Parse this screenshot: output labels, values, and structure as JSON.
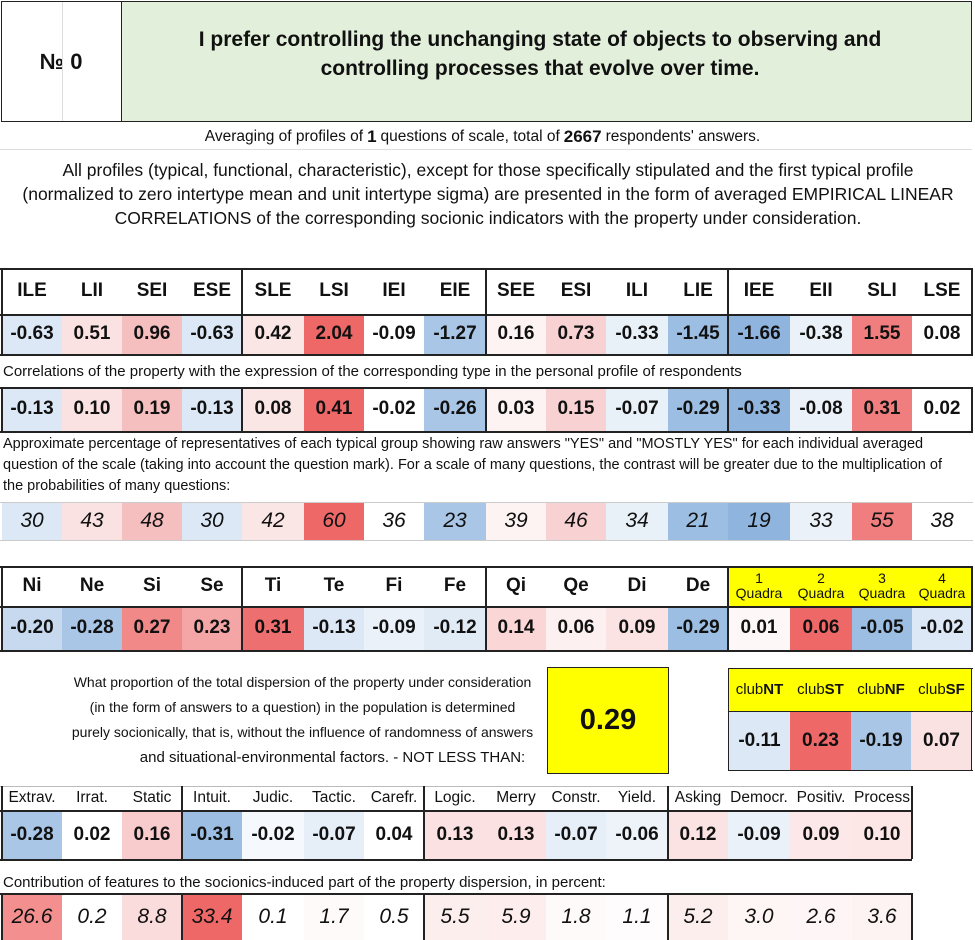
{
  "header": {
    "number_label": "№ 0",
    "question": "I prefer controlling the unchanging state of objects to observing and controlling processes that evolve over time."
  },
  "summary": {
    "prefix": "Averaging of profiles of ",
    "questions": "1",
    "middle": " questions of scale, total of ",
    "respondents": "2667",
    "suffix": " respondents' answers."
  },
  "description": "All profiles (typical, functional, characteristic), except for those specifically stipulated and the first typical profile (normalized to zero intertype mean and unit intertype sigma) are presented in the form of averaged EMPIRICAL LINEAR CORRELATIONS of the corresponding socionic indicators with the property under consideration.",
  "types": {
    "labels": [
      "ILE",
      "LII",
      "SEI",
      "ESE",
      "SLE",
      "LSI",
      "IEI",
      "EIE",
      "SEE",
      "ESI",
      "ILI",
      "LIE",
      "IEE",
      "EII",
      "SLI",
      "LSE"
    ],
    "normalized": [
      "-0.63",
      "0.51",
      "0.96",
      "-0.63",
      "0.42",
      "2.04",
      "-0.09",
      "-1.27",
      "0.16",
      "0.73",
      "-0.33",
      "-1.45",
      "-1.66",
      "-0.38",
      "1.55",
      "0.08"
    ],
    "normalized_colors": [
      "#dce8f5",
      "#fbe2e2",
      "#f6bfbf",
      "#dce8f5",
      "#fbe6e6",
      "#ee6868",
      "#ffffff",
      "#a9c6e6",
      "#fdf3f3",
      "#f8d2d2",
      "#e8f0f8",
      "#9cbee3",
      "#8fb5df",
      "#eaf1f9",
      "#f07e7e",
      "#ffffff"
    ],
    "correlation_caption": "Correlations of the property with the expression of the corresponding type in the personal profile of respondents",
    "correlations": [
      "-0.13",
      "0.10",
      "0.19",
      "-0.13",
      "0.08",
      "0.41",
      "-0.02",
      "-0.26",
      "0.03",
      "0.15",
      "-0.07",
      "-0.29",
      "-0.33",
      "-0.08",
      "0.31",
      "0.02"
    ],
    "correlation_colors": [
      "#dce8f5",
      "#fbe2e2",
      "#f6bfbf",
      "#dce8f5",
      "#fbe6e6",
      "#ee6868",
      "#ffffff",
      "#a9c6e6",
      "#fdf3f3",
      "#f8d2d2",
      "#e8f0f8",
      "#9cbee3",
      "#8fb5df",
      "#eaf1f9",
      "#f07e7e",
      "#ffffff"
    ],
    "percent_caption": "Approximate percentage of representatives of each typical group showing raw answers \"YES\" and \"MOSTLY YES\" for each individual averaged question of the scale (taking into account the question mark). For a scale of many questions, the contrast will be greater due to the multiplication of the probabilities of many questions:",
    "percents": [
      "30",
      "43",
      "48",
      "30",
      "42",
      "60",
      "36",
      "23",
      "39",
      "46",
      "34",
      "21",
      "19",
      "33",
      "55",
      "38"
    ],
    "percent_colors": [
      "#dce8f5",
      "#fbe2e2",
      "#f6bfbf",
      "#dce8f5",
      "#fbe6e6",
      "#ee6868",
      "#ffffff",
      "#a9c6e6",
      "#fdf3f3",
      "#f8d2d2",
      "#e8f0f8",
      "#9cbee3",
      "#8fb5df",
      "#eaf1f9",
      "#f07e7e",
      "#ffffff"
    ]
  },
  "functions": {
    "labels": [
      "Ni",
      "Ne",
      "Si",
      "Se",
      "Ti",
      "Te",
      "Fi",
      "Fe",
      "Qi",
      "Qe",
      "Di",
      "De"
    ],
    "values": [
      "-0.20",
      "-0.28",
      "0.27",
      "0.23",
      "0.31",
      "-0.13",
      "-0.09",
      "-0.12",
      "0.14",
      "0.06",
      "0.09",
      "-0.29"
    ],
    "colors": [
      "#c6d9ee",
      "#a9c6e6",
      "#f28989",
      "#f4a5a5",
      "#ee6f6f",
      "#dce8f5",
      "#eaf1f9",
      "#e0ebf6",
      "#fad6d6",
      "#fdf0f0",
      "#fbe3e3",
      "#9cbee3"
    ],
    "quadra_labels": [
      {
        "num": "1",
        "word": "Quadra"
      },
      {
        "num": "2",
        "word": "Quadra"
      },
      {
        "num": "3",
        "word": "Quadra"
      },
      {
        "num": "4",
        "word": "Quadra"
      }
    ],
    "quadra_values": [
      "0.01",
      "0.06",
      "-0.05",
      "-0.02"
    ],
    "quadra_colors": [
      "#fef7f7",
      "#ee6868",
      "#9cbee3",
      "#dce8f5"
    ],
    "quadra_header_color": "#ffff00"
  },
  "dispersion": {
    "lines": [
      "What proportion of the total dispersion of the property under consideration",
      "(in the form of answers to a question) in the population is determined",
      "purely socionically, that is, without the influence of randomness of answers",
      "and situational-environmental factors. - NOT LESS THAN:"
    ],
    "value": "0.29",
    "value_bg": "#ffff00"
  },
  "clubs": {
    "prefix": "club",
    "labels": [
      "NT",
      "ST",
      "NF",
      "SF"
    ],
    "values": [
      "-0.11",
      "0.23",
      "-0.19",
      "0.07"
    ],
    "colors": [
      "#dce8f5",
      "#ee6868",
      "#a9c6e6",
      "#fbe2e2"
    ],
    "header_color": "#ffff00"
  },
  "traits": {
    "labels": [
      "Extrav.",
      "Irrat.",
      "Static",
      "Intuit.",
      "Judic.",
      "Tactic.",
      "Carefr.",
      "Logic.",
      "Merry",
      "Constr.",
      "Yield.",
      "Asking",
      "Democr.",
      "Positiv.",
      "Process"
    ],
    "values": [
      "-0.28",
      "0.02",
      "0.16",
      "-0.31",
      "-0.02",
      "-0.07",
      "0.04",
      "0.13",
      "0.13",
      "-0.07",
      "-0.06",
      "0.12",
      "-0.09",
      "0.09",
      "0.10"
    ],
    "colors": [
      "#a9c6e6",
      "#ffffff",
      "#f8cccc",
      "#9cbee3",
      "#f5f8fc",
      "#e6eef8",
      "#ffffff",
      "#fbe1e1",
      "#fbe1e1",
      "#e6eef8",
      "#eef3fa",
      "#fbe3e3",
      "#eaf1f9",
      "#fce8e8",
      "#fce6e6"
    ],
    "contribution_caption": "Contribution of features to the socionics-induced part of the property dispersion, in percent:",
    "contributions": [
      "26.6",
      "0.2",
      "8.8",
      "33.4",
      "0.1",
      "1.7",
      "0.5",
      "5.5",
      "5.9",
      "1.8",
      "1.1",
      "5.2",
      "3.0",
      "2.6",
      "3.6"
    ],
    "contribution_colors": [
      "#f48f8f",
      "#ffffff",
      "#fbdcdc",
      "#ee6868",
      "#ffffff",
      "#fefafa",
      "#ffffff",
      "#fdeeee",
      "#fdeded",
      "#fefafa",
      "#fefcfc",
      "#fdeeee",
      "#fef5f5",
      "#fef6f6",
      "#fef3f3"
    ]
  }
}
